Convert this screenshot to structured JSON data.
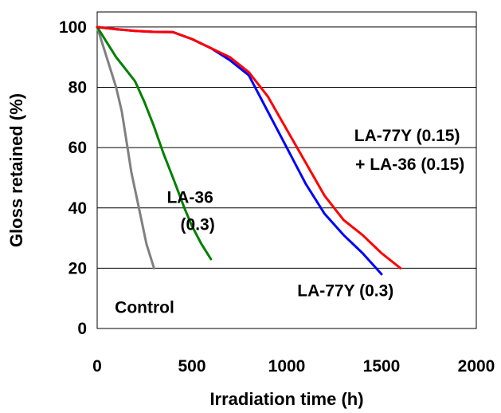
{
  "chart_data": {
    "type": "line",
    "xlabel": "Irradiation time (h)",
    "ylabel": "Gloss retained (%)",
    "xlim": [
      0,
      2000
    ],
    "ylim": [
      0,
      105
    ],
    "xticks": [
      "0",
      "500",
      "1000",
      "1500",
      "2000"
    ],
    "yticks": [
      "0",
      "20",
      "40",
      "60",
      "80",
      "100"
    ],
    "grid": "horizontal",
    "series": [
      {
        "color": "#808080",
        "x": [
          0,
          50,
          100,
          130,
          150,
          180,
          220,
          260,
          300
        ],
        "y": [
          100,
          90,
          80,
          72,
          64,
          52,
          40,
          28,
          20
        ]
      },
      {
        "color": "#008000",
        "x": [
          0,
          50,
          100,
          150,
          200,
          250,
          300,
          350,
          400,
          460,
          500,
          550,
          600
        ],
        "y": [
          100,
          95,
          90,
          86,
          82,
          75,
          67,
          58,
          50,
          40,
          34,
          28,
          23
        ]
      },
      {
        "color": "#0000ff",
        "x": [
          0,
          100,
          200,
          300,
          400,
          500,
          600,
          700,
          800,
          900,
          1000,
          1100,
          1200,
          1300,
          1400,
          1500
        ],
        "y": [
          100,
          99.3,
          98.7,
          98.4,
          98.3,
          96,
          93,
          89,
          84,
          72,
          60,
          48,
          38,
          31,
          25,
          18
        ]
      },
      {
        "color": "#ff0000",
        "x": [
          0,
          100,
          200,
          300,
          400,
          500,
          600,
          700,
          800,
          900,
          1000,
          1100,
          1200,
          1300,
          1400,
          1500,
          1600
        ],
        "y": [
          100,
          99.3,
          98.7,
          98.4,
          98.3,
          96,
          93,
          90,
          85,
          77,
          66,
          55,
          44,
          36,
          31,
          25,
          20
        ]
      }
    ],
    "annotations": [
      {
        "text": "Control",
        "x": 250,
        "y": 7
      },
      {
        "text": "LA-36",
        "x": 490,
        "y": 43.5
      },
      {
        "text": "(0.3)",
        "x": 530,
        "y": 34.5
      },
      {
        "text": "LA-77Y (0.3)",
        "x": 1310,
        "y": 12.5
      },
      {
        "text": "LA-77Y (0.15)",
        "x": 1635,
        "y": 64
      },
      {
        "text": "+ LA-36 (0.15)",
        "x": 1650,
        "y": 54.5
      }
    ]
  }
}
